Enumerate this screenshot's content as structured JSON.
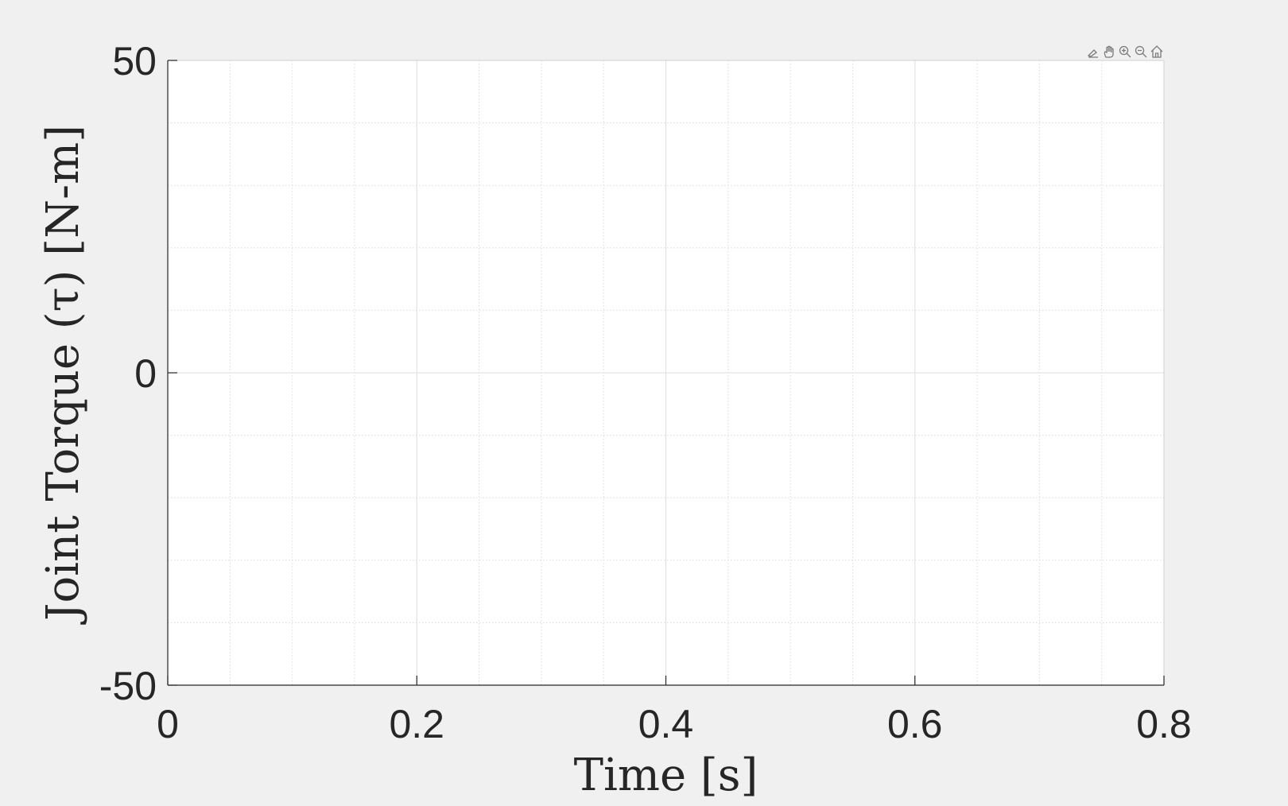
{
  "chart_data": {
    "type": "line",
    "title": "",
    "xlabel": "Time [s]",
    "ylabel": "Joint Torque (τ) [N-m]",
    "xlim": [
      0,
      0.8
    ],
    "ylim": [
      -50,
      50
    ],
    "x_ticks": [
      0,
      0.2,
      0.4,
      0.6,
      0.8
    ],
    "x_tick_labels": [
      "0",
      "0.2",
      "0.4",
      "0.6",
      "0.8"
    ],
    "y_ticks": [
      -50,
      0,
      50
    ],
    "y_tick_labels": [
      "-50",
      "0",
      "50"
    ],
    "grid": true,
    "minor_grid": true,
    "series": []
  },
  "axes_toolbar": {
    "icons": [
      "brush-icon",
      "pan-hand-icon",
      "zoom-in-icon",
      "zoom-out-icon",
      "home-icon"
    ]
  }
}
